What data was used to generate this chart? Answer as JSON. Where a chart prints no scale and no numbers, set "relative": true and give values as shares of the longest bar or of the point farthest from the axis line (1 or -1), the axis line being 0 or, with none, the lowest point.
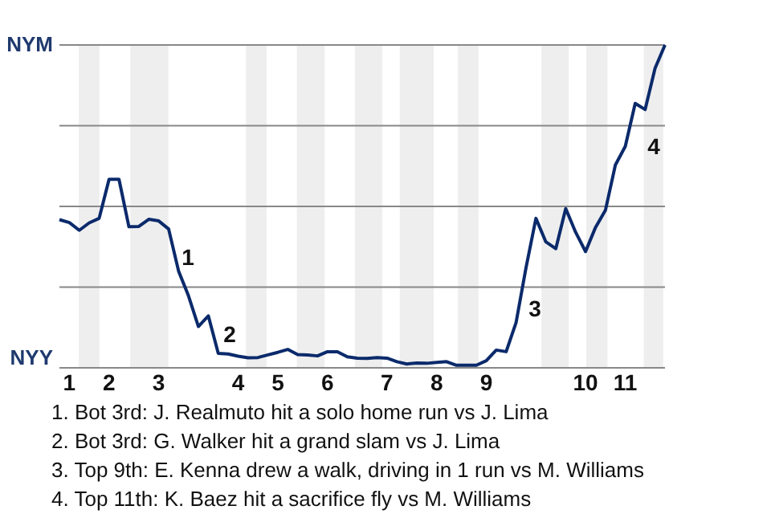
{
  "chart_data": {
    "type": "line",
    "relative": true,
    "grid": "y",
    "marker": "none",
    "line_style": "solid",
    "categories": [
      null,
      "1",
      null,
      null,
      null,
      "2",
      null,
      null,
      null,
      null,
      "3",
      null,
      null,
      null,
      null,
      null,
      null,
      null,
      "4",
      null,
      null,
      null,
      "5",
      null,
      null,
      null,
      null,
      "6",
      null,
      null,
      null,
      null,
      null,
      "7",
      null,
      null,
      null,
      null,
      "8",
      null,
      null,
      null,
      null,
      "9",
      null,
      null,
      null,
      null,
      null,
      null,
      null,
      null,
      null,
      "10",
      null,
      null,
      null,
      "11",
      null,
      null,
      null,
      null
    ],
    "series": [
      {
        "color": "#0b2a6b",
        "values": [
          0.459,
          0.45,
          0.426,
          0.449,
          0.463,
          0.584,
          0.584,
          0.437,
          0.438,
          0.46,
          0.455,
          0.43,
          0.3,
          0.223,
          0.128,
          0.161,
          0.045,
          0.043,
          0.036,
          0.031,
          0.032,
          0.04,
          0.048,
          0.057,
          0.041,
          0.04,
          0.037,
          0.05,
          0.05,
          0.034,
          0.03,
          0.029,
          0.032,
          0.03,
          0.019,
          0.012,
          0.015,
          0.014,
          0.017,
          0.019,
          0.008,
          0.008,
          0.008,
          0.022,
          0.055,
          0.05,
          0.14,
          0.31,
          0.463,
          0.39,
          0.369,
          0.493,
          0.42,
          0.36,
          0.435,
          0.488,
          0.628,
          0.686,
          0.819,
          0.8,
          0.928,
          1
        ]
      }
    ],
    "annotations": [
      "NYM",
      "NYY",
      "1",
      "2",
      "3",
      "4",
      "1. Bot 3rd: J. Realmuto hit a solo home run vs J. Lima",
      "2. Bot 3rd: G. Walker hit a grand slam vs J. Lima",
      "3. Top 9th: E. Kenna drew a walk, driving in 1 run vs M. Williams",
      "4. Top 11th: K. Baez hit a sacrifice fly vs M. Williams"
    ]
  }
}
